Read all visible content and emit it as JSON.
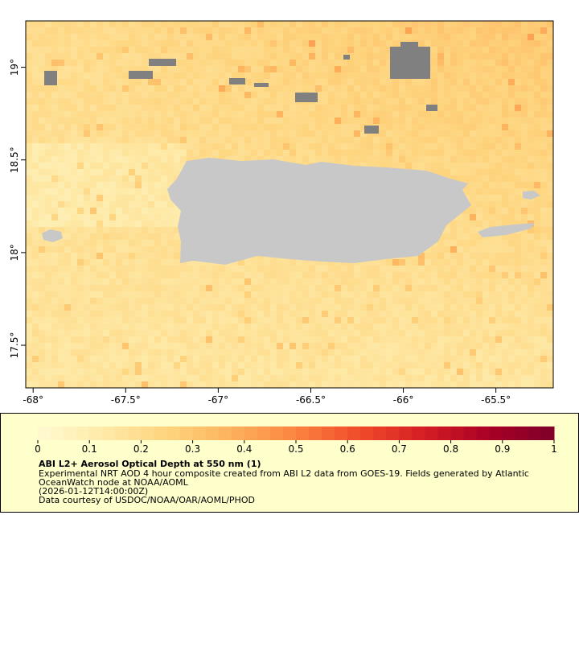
{
  "chart_data": {
    "type": "map",
    "xlim": [
      -68.04,
      -65.19
    ],
    "ylim": [
      17.27,
      19.25
    ],
    "xticks": [
      {
        "value": -68,
        "label": "-68°"
      },
      {
        "value": -67.5,
        "label": "-67.5°"
      },
      {
        "value": -67,
        "label": "-67°"
      },
      {
        "value": -66.5,
        "label": "-66.5°"
      },
      {
        "value": -66,
        "label": "-66°"
      },
      {
        "value": -65.5,
        "label": "-65.5°"
      }
    ],
    "yticks": [
      {
        "value": 17.5,
        "label": "17.5°"
      },
      {
        "value": 18,
        "label": "18°"
      },
      {
        "value": 18.5,
        "label": "18.5°"
      },
      {
        "value": 19,
        "label": "19°"
      }
    ],
    "colorbar": {
      "clim": [
        0,
        1
      ],
      "ticks": [
        0,
        0.1,
        0.2,
        0.3,
        0.4,
        0.5,
        0.6,
        0.7,
        0.8,
        0.9,
        1
      ],
      "colorscale": [
        "#fffad2",
        "#feeaa8",
        "#fed47e",
        "#fdb25c",
        "#fc8440",
        "#f04a2a",
        "#d41d24",
        "#a80026",
        "#7f0029"
      ]
    },
    "title": "ABI L2+ Aerosol Optical Depth at 550 nm (1)",
    "description": [
      "Experimental NRT AOD 4 hour composite created from ABI L2 data from GOES-19. Fields generated by Atlantic",
      "OceanWatch node at NOAA/AOML",
      "(2026-01-12T14:00:00Z)",
      "Data courtesy of USDOC/NOAA/OAR/AOML/PHOD"
    ]
  }
}
